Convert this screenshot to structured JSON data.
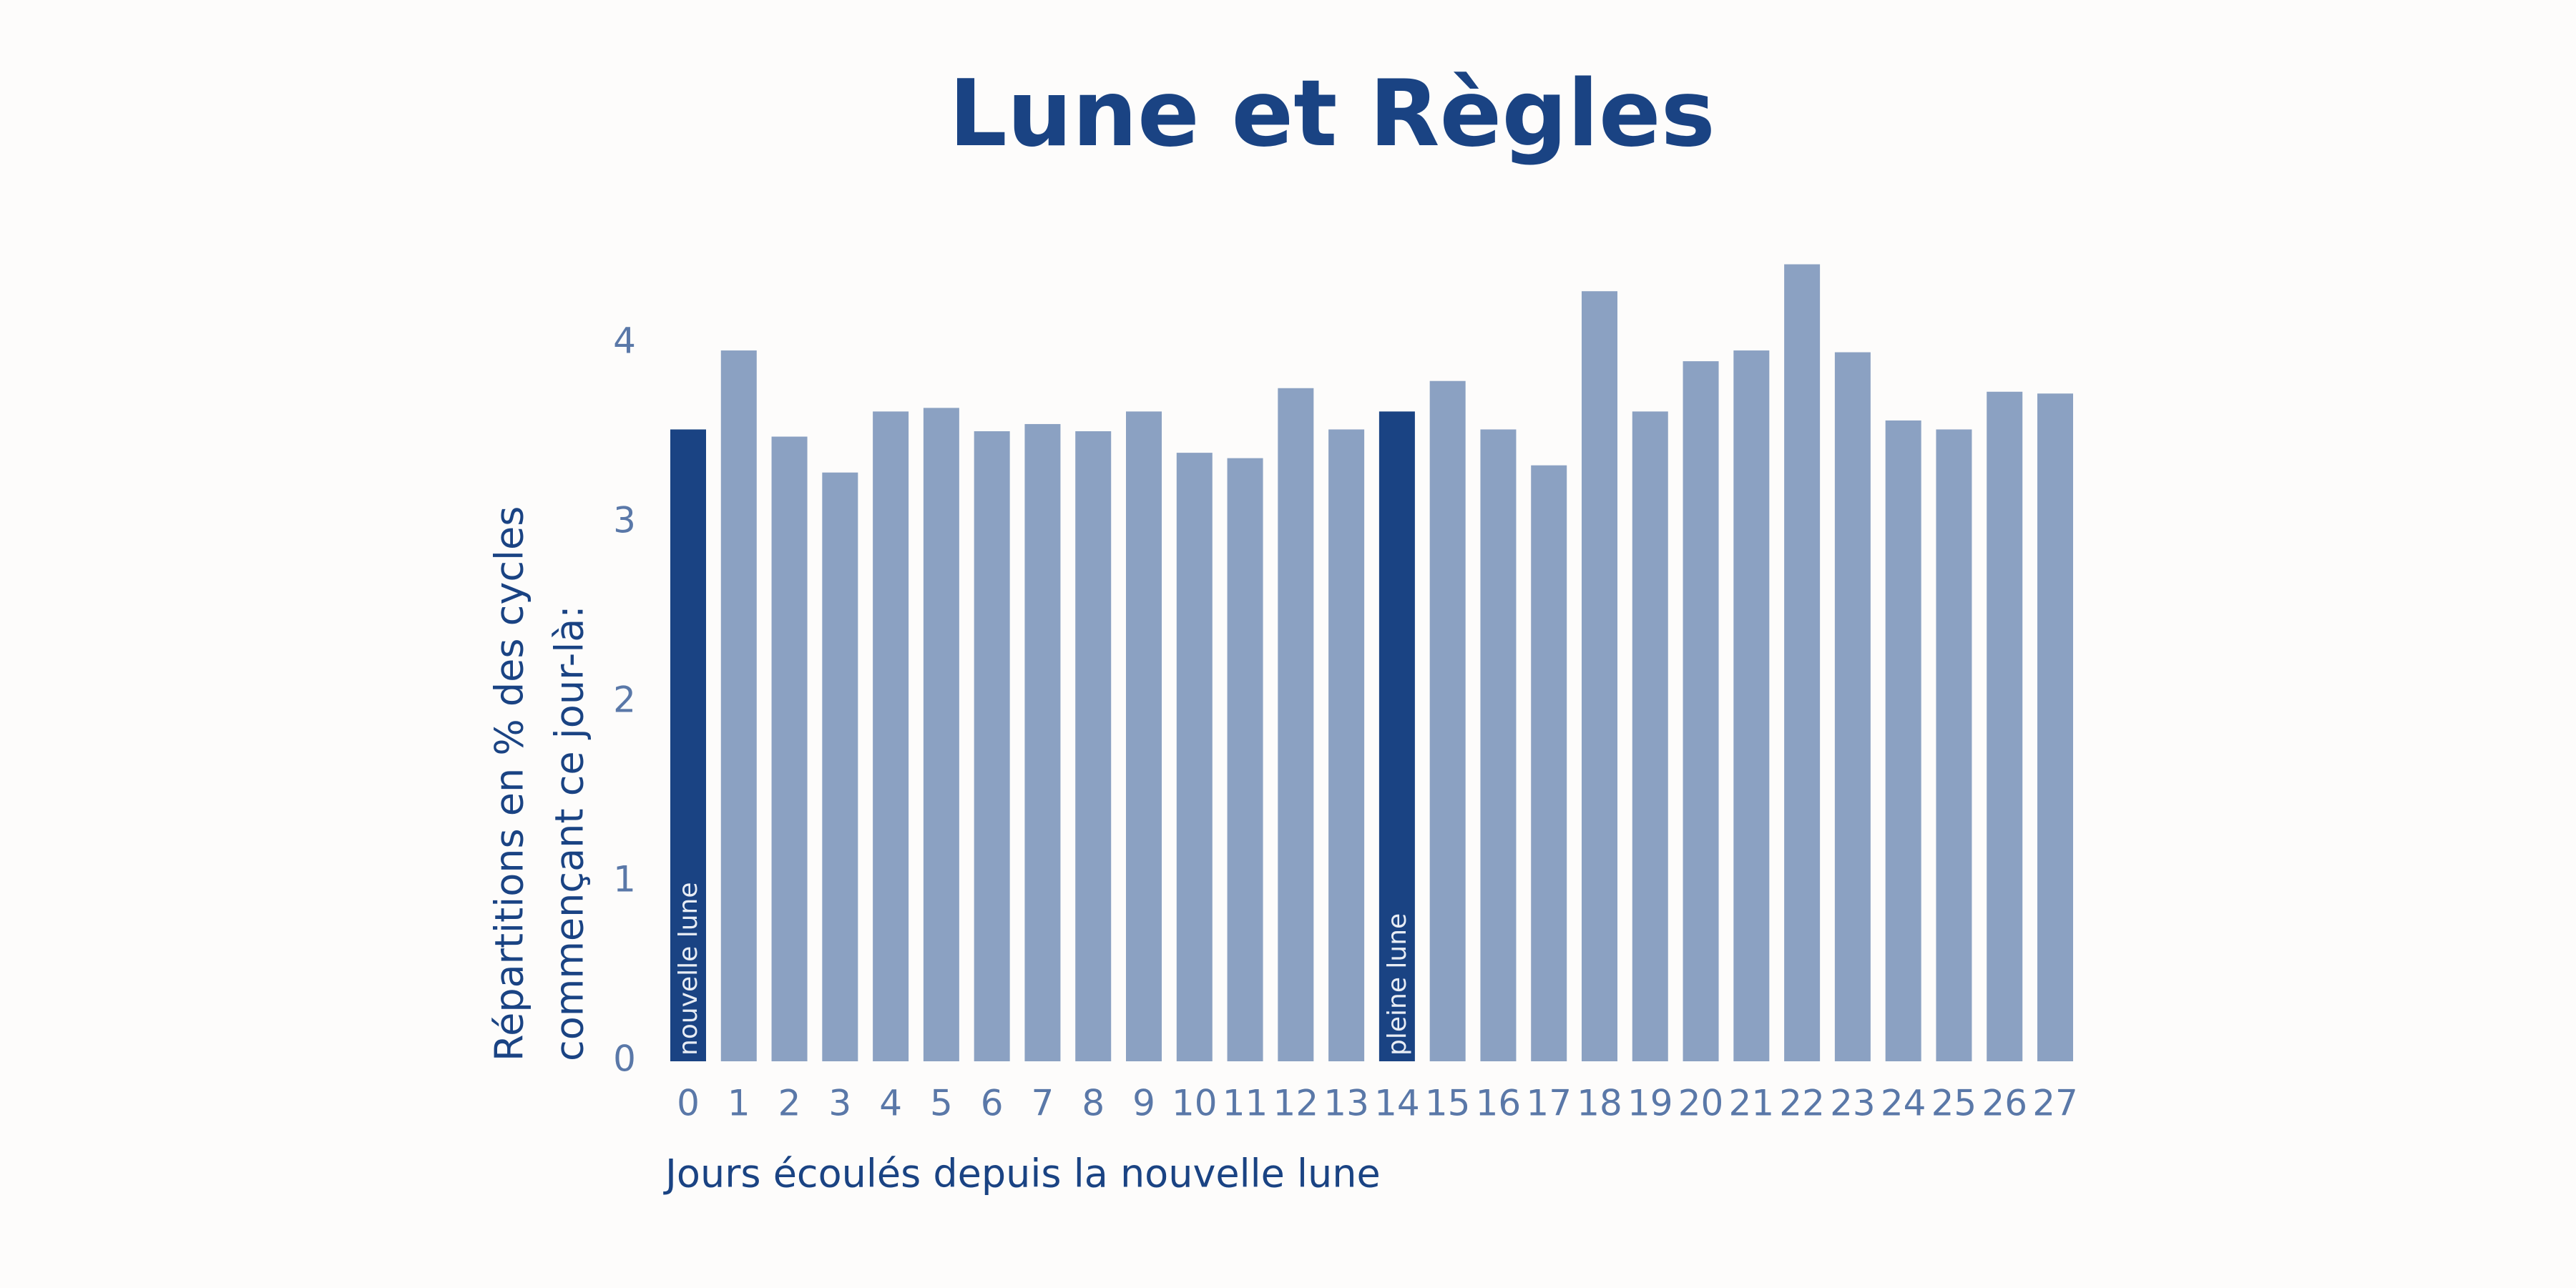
{
  "chart_data": {
    "type": "bar",
    "title": "Lune et Règles",
    "x_label": "Jours écoulés depuis la nouvelle lune",
    "y_label": [
      "Répartitions en % des cycles",
      "commençant ce jour-là:"
    ],
    "categories": [
      "0",
      "1",
      "2",
      "3",
      "4",
      "5",
      "6",
      "7",
      "8",
      "9",
      "10",
      "11",
      "12",
      "13",
      "14",
      "15",
      "16",
      "17",
      "18",
      "19",
      "20",
      "21",
      "22",
      "23",
      "24",
      "25",
      "26",
      "27"
    ],
    "values": [
      3.52,
      3.96,
      3.48,
      3.28,
      3.62,
      3.64,
      3.51,
      3.55,
      3.51,
      3.62,
      3.39,
      3.36,
      3.75,
      3.52,
      3.62,
      3.79,
      3.52,
      3.32,
      4.29,
      3.62,
      3.9,
      3.96,
      4.44,
      3.95,
      3.57,
      3.52,
      3.73,
      3.72
    ],
    "colors": [
      "#1a4383",
      "#8ba1c2",
      "#8ba1c2",
      "#8ba1c2",
      "#8ba1c2",
      "#8ba1c2",
      "#8ba1c2",
      "#8ba1c2",
      "#8ba1c2",
      "#8ba1c2",
      "#8ba1c2",
      "#8ba1c2",
      "#8ba1c2",
      "#8ba1c2",
      "#1a4383",
      "#8ba1c2",
      "#8ba1c2",
      "#8ba1c2",
      "#8ba1c2",
      "#8ba1c2",
      "#8ba1c2",
      "#8ba1c2",
      "#8ba1c2",
      "#8ba1c2",
      "#8ba1c2",
      "#8ba1c2",
      "#8ba1c2",
      "#8ba1c2"
    ],
    "annotations": [
      {
        "text": "nouvelle lune",
        "index": 0
      },
      {
        "text": "pleine lune",
        "index": 14
      }
    ],
    "ylim": [
      0,
      4.5
    ],
    "yticks": [
      0,
      1,
      2,
      3,
      4
    ],
    "grid": false
  }
}
